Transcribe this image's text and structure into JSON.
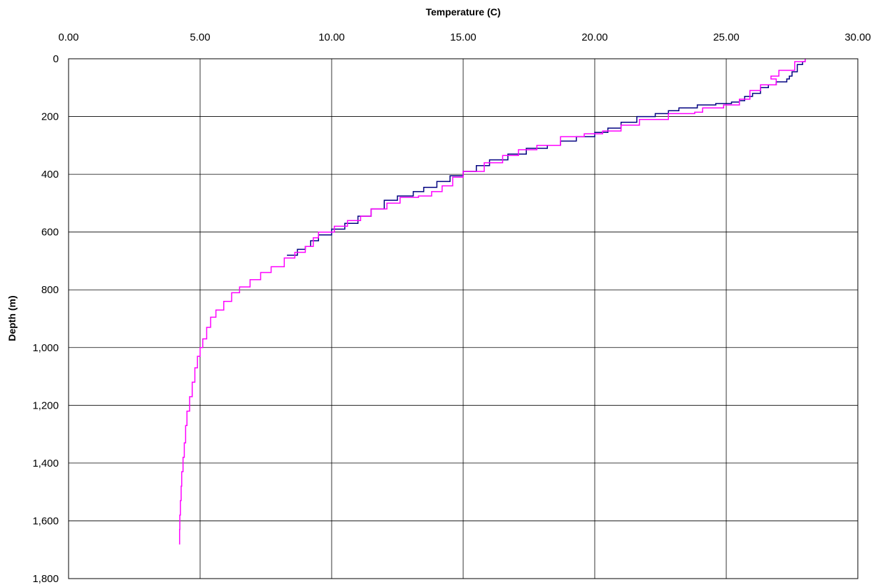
{
  "chart_data": {
    "type": "line",
    "title": "",
    "xlabel": "Temperature (C)",
    "ylabel": "Depth (m)",
    "x_axis_position": "top",
    "y_axis_inverted": true,
    "xlim": [
      0,
      30
    ],
    "ylim": [
      0,
      1800
    ],
    "x_ticks": [
      "0.00",
      "5.00",
      "10.00",
      "15.00",
      "20.00",
      "25.00",
      "30.00"
    ],
    "y_ticks": [
      "0",
      "200",
      "400",
      "600",
      "800",
      "1,000",
      "1,200",
      "1,400",
      "1,600",
      "1,800"
    ],
    "grid": true,
    "legend": "none",
    "series": [
      {
        "color": "#000080",
        "points": [
          [
            28.0,
            0
          ],
          [
            27.9,
            10
          ],
          [
            27.7,
            20
          ],
          [
            27.5,
            45
          ],
          [
            27.4,
            60
          ],
          [
            27.3,
            70
          ],
          [
            26.9,
            80
          ],
          [
            26.6,
            90
          ],
          [
            26.3,
            100
          ],
          [
            26.0,
            120
          ],
          [
            25.7,
            130
          ],
          [
            25.5,
            145
          ],
          [
            25.2,
            150
          ],
          [
            24.6,
            155
          ],
          [
            23.9,
            160
          ],
          [
            23.2,
            170
          ],
          [
            22.8,
            180
          ],
          [
            22.3,
            190
          ],
          [
            21.6,
            200
          ],
          [
            21.0,
            220
          ],
          [
            20.5,
            240
          ],
          [
            20.0,
            255
          ],
          [
            19.3,
            270
          ],
          [
            18.7,
            285
          ],
          [
            18.2,
            300
          ],
          [
            17.4,
            310
          ],
          [
            16.7,
            330
          ],
          [
            16.0,
            350
          ],
          [
            15.5,
            370
          ],
          [
            15.0,
            390
          ],
          [
            14.5,
            405
          ],
          [
            14.0,
            425
          ],
          [
            13.5,
            445
          ],
          [
            13.1,
            460
          ],
          [
            12.5,
            475
          ],
          [
            12.0,
            490
          ],
          [
            11.5,
            520
          ],
          [
            11.0,
            545
          ],
          [
            10.5,
            570
          ],
          [
            10.0,
            590
          ],
          [
            9.5,
            610
          ],
          [
            9.2,
            630
          ],
          [
            9.0,
            650
          ],
          [
            8.7,
            660
          ],
          [
            8.3,
            680
          ]
        ]
      },
      {
        "color": "#FF00FF",
        "points": [
          [
            28.0,
            0
          ],
          [
            27.6,
            10
          ],
          [
            27.0,
            40
          ],
          [
            26.7,
            60
          ],
          [
            26.9,
            70
          ],
          [
            26.3,
            90
          ],
          [
            25.9,
            110
          ],
          [
            25.5,
            140
          ],
          [
            24.9,
            160
          ],
          [
            24.1,
            170
          ],
          [
            23.8,
            185
          ],
          [
            22.8,
            190
          ],
          [
            21.7,
            210
          ],
          [
            21.0,
            230
          ],
          [
            20.3,
            250
          ],
          [
            19.6,
            260
          ],
          [
            18.7,
            270
          ],
          [
            17.8,
            300
          ],
          [
            17.1,
            315
          ],
          [
            16.5,
            335
          ],
          [
            15.8,
            360
          ],
          [
            15.0,
            390
          ],
          [
            14.6,
            410
          ],
          [
            14.2,
            440
          ],
          [
            13.8,
            460
          ],
          [
            13.3,
            475
          ],
          [
            12.6,
            480
          ],
          [
            12.1,
            500
          ],
          [
            11.5,
            520
          ],
          [
            11.1,
            545
          ],
          [
            10.6,
            560
          ],
          [
            10.1,
            580
          ],
          [
            9.5,
            600
          ],
          [
            9.3,
            620
          ],
          [
            9.0,
            650
          ],
          [
            8.6,
            670
          ],
          [
            8.2,
            690
          ],
          [
            7.7,
            720
          ],
          [
            7.3,
            740
          ],
          [
            6.9,
            765
          ],
          [
            6.5,
            790
          ],
          [
            6.2,
            810
          ],
          [
            5.9,
            840
          ],
          [
            5.6,
            870
          ],
          [
            5.4,
            895
          ],
          [
            5.25,
            930
          ],
          [
            5.1,
            970
          ],
          [
            5.0,
            1000
          ],
          [
            4.9,
            1030
          ],
          [
            4.8,
            1070
          ],
          [
            4.7,
            1120
          ],
          [
            4.6,
            1170
          ],
          [
            4.5,
            1220
          ],
          [
            4.45,
            1270
          ],
          [
            4.4,
            1330
          ],
          [
            4.35,
            1380
          ],
          [
            4.3,
            1430
          ],
          [
            4.28,
            1480
          ],
          [
            4.25,
            1530
          ],
          [
            4.23,
            1580
          ],
          [
            4.22,
            1630
          ],
          [
            4.2,
            1680
          ]
        ]
      }
    ]
  }
}
